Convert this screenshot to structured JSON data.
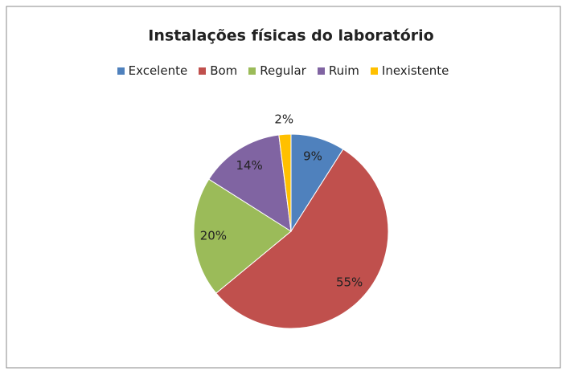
{
  "chart_data": {
    "type": "pie",
    "title": "Instalações físicas do laboratório",
    "categories": [
      "Excelente",
      "Bom",
      "Regular",
      "Ruim",
      "Inexistente"
    ],
    "values": [
      9,
      55,
      20,
      14,
      2
    ],
    "value_labels": [
      "9%",
      "55%",
      "20%",
      "14%",
      "2%"
    ],
    "colors": [
      "#4f81bd",
      "#c0504d",
      "#9bbb59",
      "#8064a2",
      "#ffc000"
    ],
    "legend": "top"
  }
}
